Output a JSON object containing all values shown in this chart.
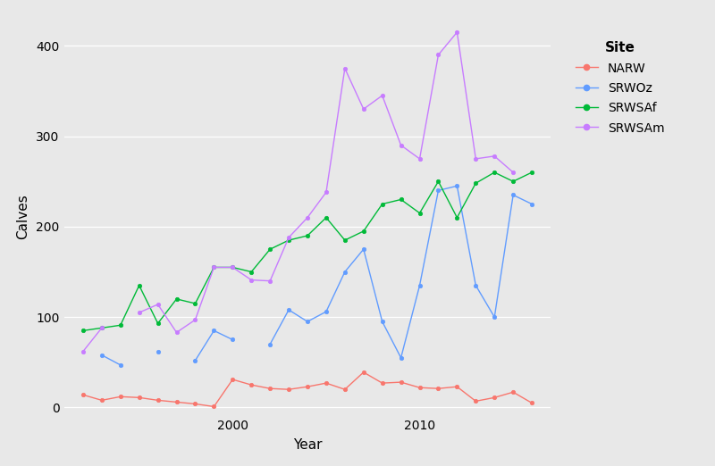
{
  "years": [
    1992,
    1993,
    1994,
    1995,
    1996,
    1997,
    1998,
    1999,
    2000,
    2001,
    2002,
    2003,
    2004,
    2005,
    2006,
    2007,
    2008,
    2009,
    2010,
    2011,
    2012,
    2013,
    2014,
    2015,
    2016
  ],
  "NARW": [
    14,
    8,
    12,
    11,
    8,
    6,
    4,
    1,
    31,
    25,
    21,
    20,
    23,
    27,
    20,
    39,
    27,
    28,
    22,
    21,
    23,
    7,
    11,
    17,
    5
  ],
  "SRWOz": [
    null,
    58,
    47,
    null,
    62,
    null,
    52,
    85,
    75,
    null,
    70,
    108,
    95,
    106,
    150,
    175,
    95,
    55,
    135,
    240,
    245,
    135,
    100,
    235,
    225
  ],
  "SRWSAf": [
    85,
    88,
    91,
    135,
    93,
    120,
    115,
    155,
    155,
    150,
    175,
    185,
    190,
    210,
    185,
    195,
    225,
    230,
    215,
    250,
    210,
    248,
    260,
    250,
    260
  ],
  "SRWSAm": [
    62,
    88,
    null,
    105,
    114,
    83,
    97,
    155,
    155,
    141,
    140,
    188,
    210,
    238,
    375,
    330,
    345,
    290,
    275,
    390,
    415,
    275,
    278,
    260,
    null
  ],
  "colors": {
    "NARW": "#f8766d",
    "SRWOz": "#619cff",
    "SRWSAf": "#00ba38",
    "SRWSAm": "#c77cff"
  },
  "xlabel": "Year",
  "ylabel": "Calves",
  "ylim": [
    -8,
    430
  ],
  "xlim": [
    1991.0,
    2017.0
  ],
  "yticks": [
    0,
    100,
    200,
    300,
    400
  ],
  "xticks": [
    2000,
    2010
  ],
  "background_color": "#e8e8e8",
  "grid_color": "#ffffff",
  "legend_title": "Site",
  "legend_labels": [
    "NARW",
    "SRWOz",
    "SRWSAf",
    "SRWSAm"
  ],
  "series_keys": [
    "NARW",
    "SRWOz",
    "SRWSAf",
    "SRWSAm"
  ]
}
